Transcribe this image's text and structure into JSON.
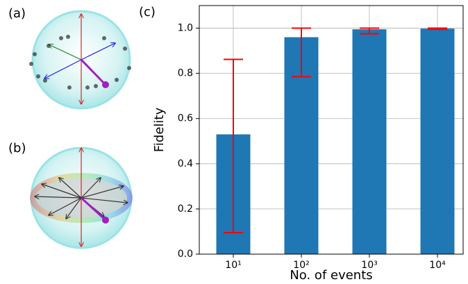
{
  "panel_labels": [
    "(a)",
    "(b)",
    "(c)"
  ],
  "chart_data": {
    "type": "bar",
    "xlabel": "No. of events",
    "ylabel": "Fidelity",
    "categories": [
      "10¹",
      "10²",
      "10³",
      "10⁴"
    ],
    "values": [
      0.53,
      0.96,
      0.995,
      0.998
    ],
    "error_low": [
      0.095,
      0.785,
      0.975,
      0.995
    ],
    "error_high": [
      0.862,
      1.0,
      1.0,
      1.0
    ],
    "color": "#1f77b4",
    "error_color": "#ff0000",
    "ylim": [
      0,
      1.1
    ],
    "yticks": [
      {
        "value": 0,
        "label": "0.0"
      },
      0.2,
      0.4,
      0.6,
      0.8,
      {
        "value": 1,
        "label": "1.0"
      }
    ],
    "grid": true
  }
}
